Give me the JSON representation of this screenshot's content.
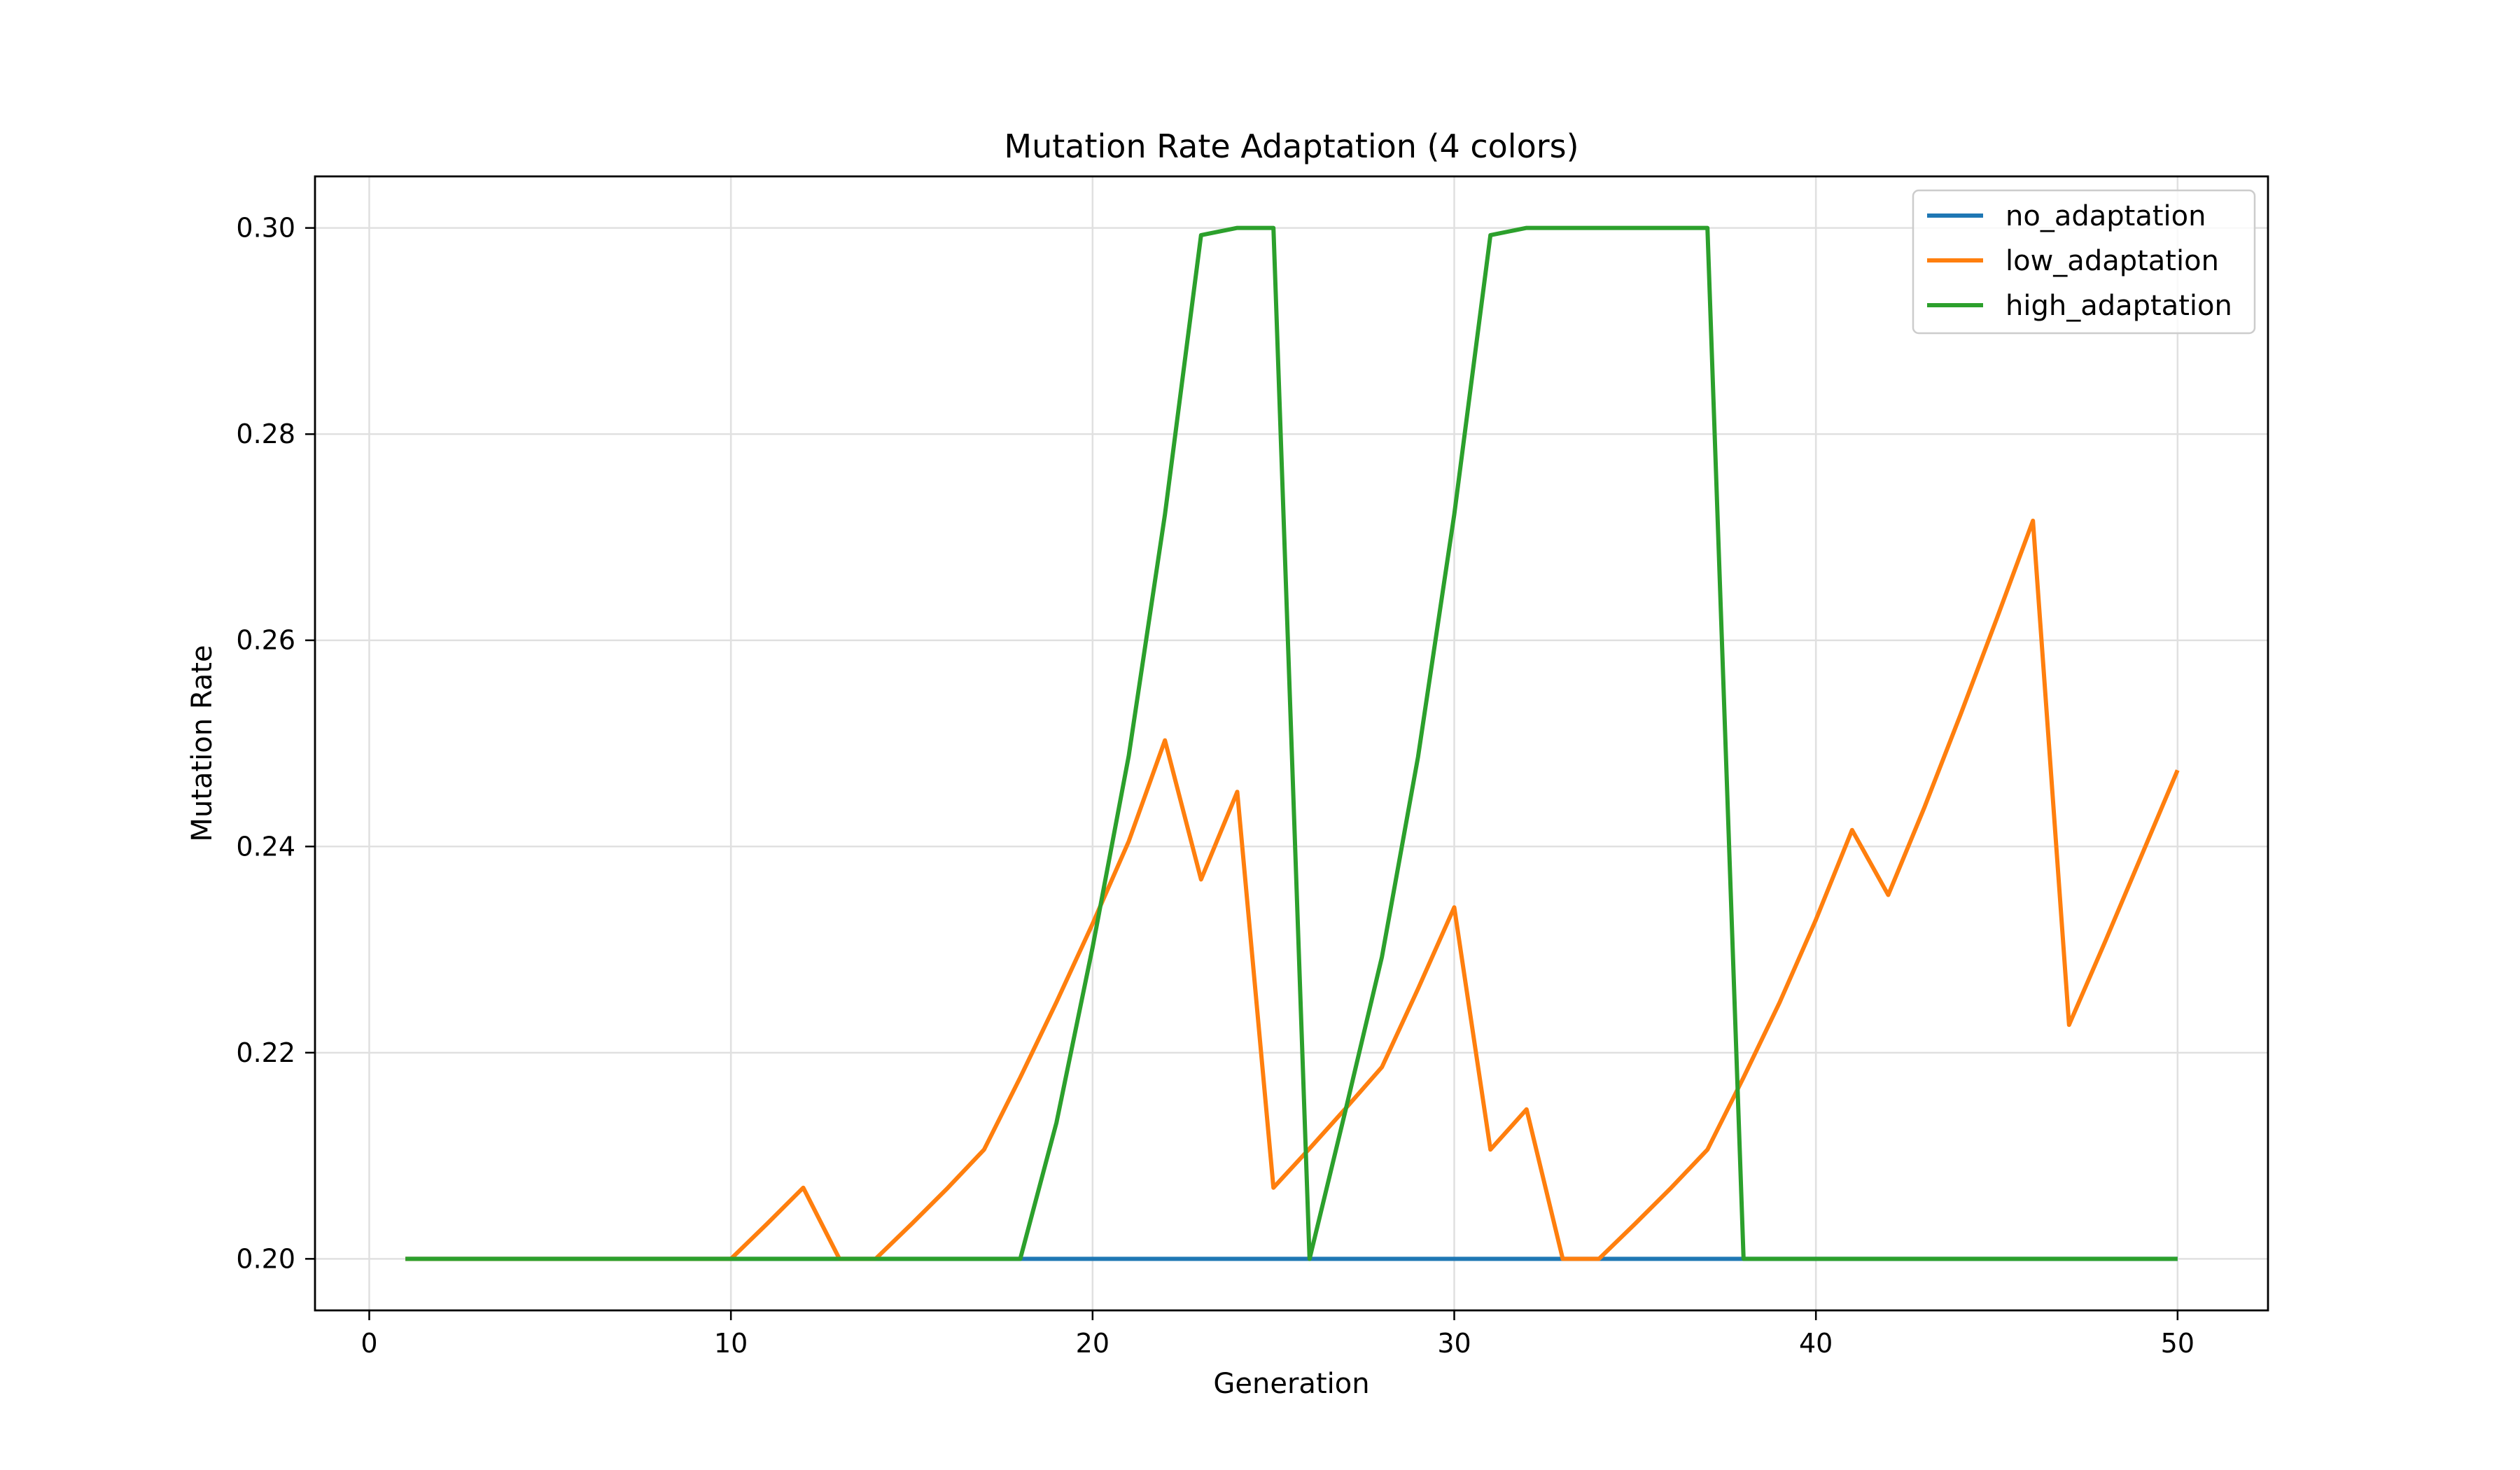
{
  "chart_data": {
    "type": "line",
    "title": "Mutation Rate Adaptation (4 colors)",
    "xlabel": "Generation",
    "ylabel": "Mutation Rate",
    "xlim": [
      -1.5,
      52.5
    ],
    "ylim": [
      0.195,
      0.305
    ],
    "xticks": [
      0,
      10,
      20,
      30,
      40,
      50
    ],
    "yticks": [
      0.2,
      0.22,
      0.24,
      0.26,
      0.28,
      0.3
    ],
    "ytick_labels": [
      "0.20",
      "0.22",
      "0.24",
      "0.26",
      "0.28",
      "0.30"
    ],
    "grid": true,
    "legend": "top-right",
    "x": [
      1,
      2,
      3,
      4,
      5,
      6,
      7,
      8,
      9,
      10,
      11,
      12,
      13,
      14,
      15,
      16,
      17,
      18,
      19,
      20,
      21,
      22,
      23,
      24,
      25,
      26,
      27,
      28,
      29,
      30,
      31,
      32,
      33,
      34,
      35,
      36,
      37,
      38,
      39,
      40,
      41,
      42,
      43,
      44,
      45,
      46,
      47,
      48,
      49,
      50
    ],
    "series": [
      {
        "name": "no_adaptation",
        "color": "#1f77b4",
        "values": [
          0.2,
          0.2,
          0.2,
          0.2,
          0.2,
          0.2,
          0.2,
          0.2,
          0.2,
          0.2,
          0.2,
          0.2,
          0.2,
          0.2,
          0.2,
          0.2,
          0.2,
          0.2,
          0.2,
          0.2,
          0.2,
          0.2,
          0.2,
          0.2,
          0.2,
          0.2,
          0.2,
          0.2,
          0.2,
          0.2,
          0.2,
          0.2,
          0.2,
          0.2,
          0.2,
          0.2,
          0.2,
          0.2,
          0.2,
          0.2,
          0.2,
          0.2,
          0.2,
          0.2,
          0.2,
          0.2,
          0.2,
          0.2,
          0.2,
          0.2
        ]
      },
      {
        "name": "low_adaptation",
        "color": "#ff7f0e",
        "values": [
          0.2,
          0.2,
          0.2,
          0.2,
          0.2,
          0.2,
          0.2,
          0.2,
          0.2,
          0.2,
          0.2034,
          0.2069,
          0.2,
          0.2,
          0.2034,
          0.2069,
          0.2106,
          0.2176,
          0.2249,
          0.2325,
          0.2405,
          0.2503,
          0.2368,
          0.2453,
          0.2069,
          0.2107,
          0.2146,
          0.2186,
          0.2262,
          0.2341,
          0.2106,
          0.2145,
          0.2,
          0.2,
          0.2034,
          0.2069,
          0.2106,
          0.2176,
          0.2249,
          0.2329,
          0.2416,
          0.2353,
          0.2438,
          0.2528,
          0.2621,
          0.2716,
          0.2227,
          0.2308,
          0.2391,
          0.2474
        ]
      },
      {
        "name": "high_adaptation",
        "color": "#2ca02c",
        "values": [
          0.2,
          0.2,
          0.2,
          0.2,
          0.2,
          0.2,
          0.2,
          0.2,
          0.2,
          0.2,
          0.2,
          0.2,
          0.2,
          0.2,
          0.2,
          0.2,
          0.2,
          0.2,
          0.2132,
          0.2302,
          0.2488,
          0.2722,
          0.2993,
          0.3,
          0.3,
          0.2,
          0.2145,
          0.2293,
          0.2487,
          0.2722,
          0.2993,
          0.3,
          0.3,
          0.3,
          0.3,
          0.3,
          0.3,
          0.2,
          0.2,
          0.2,
          0.2,
          0.2,
          0.2,
          0.2,
          0.2,
          0.2,
          0.2,
          0.2,
          0.2,
          0.2
        ]
      }
    ]
  }
}
